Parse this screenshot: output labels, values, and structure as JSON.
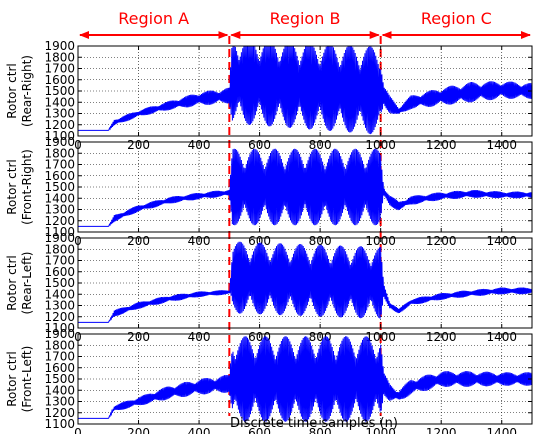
{
  "chart_data": {
    "type": "line",
    "xlabel": "Discrete time samples (n)",
    "xlim": [
      0,
      1500
    ],
    "x_ticks": [
      "0",
      "200",
      "400",
      "600",
      "800",
      "1000",
      "1200",
      "1400"
    ],
    "ylim": [
      1100,
      1900
    ],
    "y_ticks": [
      "1100",
      "1200",
      "1300",
      "1400",
      "1500",
      "1600",
      "1700",
      "1800",
      "1900"
    ],
    "grid": true,
    "line_color": "#0000ff",
    "region_color": "#ff0000",
    "boundaries": [
      500,
      1000
    ],
    "regions": [
      {
        "label": "Region A",
        "from": 0,
        "to": 500
      },
      {
        "label": "Region B",
        "from": 500,
        "to": 1000
      },
      {
        "label": "Region C",
        "from": 1000,
        "to": 1500
      }
    ],
    "panels": [
      {
        "ylabel_line1": "Rotor ctrl",
        "ylabel_line2": "(Rear-Right)",
        "points": [
          [
            0,
            1150
          ],
          [
            100,
            1150
          ],
          [
            120,
            1220
          ],
          [
            200,
            1300
          ],
          [
            300,
            1370
          ],
          [
            400,
            1430
          ],
          [
            500,
            1460
          ],
          [
            510,
            1600
          ],
          [
            1000,
            1500
          ],
          [
            1030,
            1380
          ],
          [
            1060,
            1320
          ],
          [
            1100,
            1400
          ],
          [
            1200,
            1450
          ],
          [
            1300,
            1490
          ],
          [
            1400,
            1510
          ],
          [
            1500,
            1500
          ]
        ],
        "amp": [
          [
            0,
            0
          ],
          [
            100,
            0
          ],
          [
            120,
            30
          ],
          [
            200,
            30
          ],
          [
            300,
            40
          ],
          [
            400,
            60
          ],
          [
            500,
            70
          ],
          [
            510,
            390
          ],
          [
            1000,
            390
          ],
          [
            1010,
            100
          ],
          [
            1060,
            40
          ],
          [
            1100,
            60
          ],
          [
            1200,
            80
          ],
          [
            1300,
            90
          ],
          [
            1400,
            80
          ],
          [
            1500,
            70
          ]
        ]
      },
      {
        "ylabel_line1": "Rotor ctrl",
        "ylabel_line2": "(Front-Right)",
        "points": [
          [
            0,
            1150
          ],
          [
            100,
            1150
          ],
          [
            120,
            1220
          ],
          [
            200,
            1310
          ],
          [
            300,
            1380
          ],
          [
            400,
            1420
          ],
          [
            500,
            1450
          ],
          [
            510,
            1500
          ],
          [
            1000,
            1500
          ],
          [
            1030,
            1380
          ],
          [
            1060,
            1330
          ],
          [
            1100,
            1380
          ],
          [
            1200,
            1420
          ],
          [
            1300,
            1440
          ],
          [
            1400,
            1430
          ],
          [
            1500,
            1430
          ]
        ],
        "amp": [
          [
            0,
            0
          ],
          [
            100,
            0
          ],
          [
            120,
            30
          ],
          [
            200,
            30
          ],
          [
            300,
            30
          ],
          [
            400,
            30
          ],
          [
            500,
            30
          ],
          [
            510,
            340
          ],
          [
            1000,
            340
          ],
          [
            1010,
            60
          ],
          [
            1060,
            40
          ],
          [
            1100,
            40
          ],
          [
            1200,
            35
          ],
          [
            1300,
            35
          ],
          [
            1400,
            30
          ],
          [
            1500,
            30
          ]
        ]
      },
      {
        "ylabel_line1": "Rotor ctrl",
        "ylabel_line2": "(Rear-Left)",
        "points": [
          [
            0,
            1150
          ],
          [
            100,
            1150
          ],
          [
            120,
            1230
          ],
          [
            200,
            1300
          ],
          [
            300,
            1360
          ],
          [
            400,
            1400
          ],
          [
            500,
            1420
          ],
          [
            510,
            1550
          ],
          [
            1000,
            1500
          ],
          [
            1030,
            1300
          ],
          [
            1060,
            1250
          ],
          [
            1100,
            1330
          ],
          [
            1200,
            1380
          ],
          [
            1300,
            1410
          ],
          [
            1400,
            1430
          ],
          [
            1500,
            1430
          ]
        ],
        "amp": [
          [
            0,
            0
          ],
          [
            100,
            0
          ],
          [
            120,
            30
          ],
          [
            200,
            30
          ],
          [
            300,
            30
          ],
          [
            400,
            25
          ],
          [
            500,
            20
          ],
          [
            510,
            320
          ],
          [
            1000,
            320
          ],
          [
            1010,
            60
          ],
          [
            1060,
            20
          ],
          [
            1100,
            30
          ],
          [
            1200,
            30
          ],
          [
            1300,
            30
          ],
          [
            1400,
            30
          ],
          [
            1500,
            30
          ]
        ]
      },
      {
        "ylabel_line1": "Rotor ctrl",
        "ylabel_line2": "(Front-Left)",
        "points": [
          [
            0,
            1150
          ],
          [
            100,
            1150
          ],
          [
            120,
            1240
          ],
          [
            200,
            1300
          ],
          [
            300,
            1380
          ],
          [
            400,
            1430
          ],
          [
            500,
            1460
          ],
          [
            510,
            1500
          ],
          [
            1000,
            1500
          ],
          [
            1030,
            1380
          ],
          [
            1060,
            1350
          ],
          [
            1100,
            1430
          ],
          [
            1200,
            1500
          ],
          [
            1300,
            1500
          ],
          [
            1400,
            1500
          ],
          [
            1500,
            1500
          ]
        ],
        "amp": [
          [
            0,
            0
          ],
          [
            100,
            0
          ],
          [
            120,
            30
          ],
          [
            200,
            40
          ],
          [
            300,
            60
          ],
          [
            400,
            70
          ],
          [
            500,
            80
          ],
          [
            510,
            380
          ],
          [
            1000,
            380
          ],
          [
            1010,
            100
          ],
          [
            1060,
            50
          ],
          [
            1100,
            70
          ],
          [
            1200,
            70
          ],
          [
            1300,
            70
          ],
          [
            1400,
            60
          ],
          [
            1500,
            60
          ]
        ]
      }
    ]
  }
}
